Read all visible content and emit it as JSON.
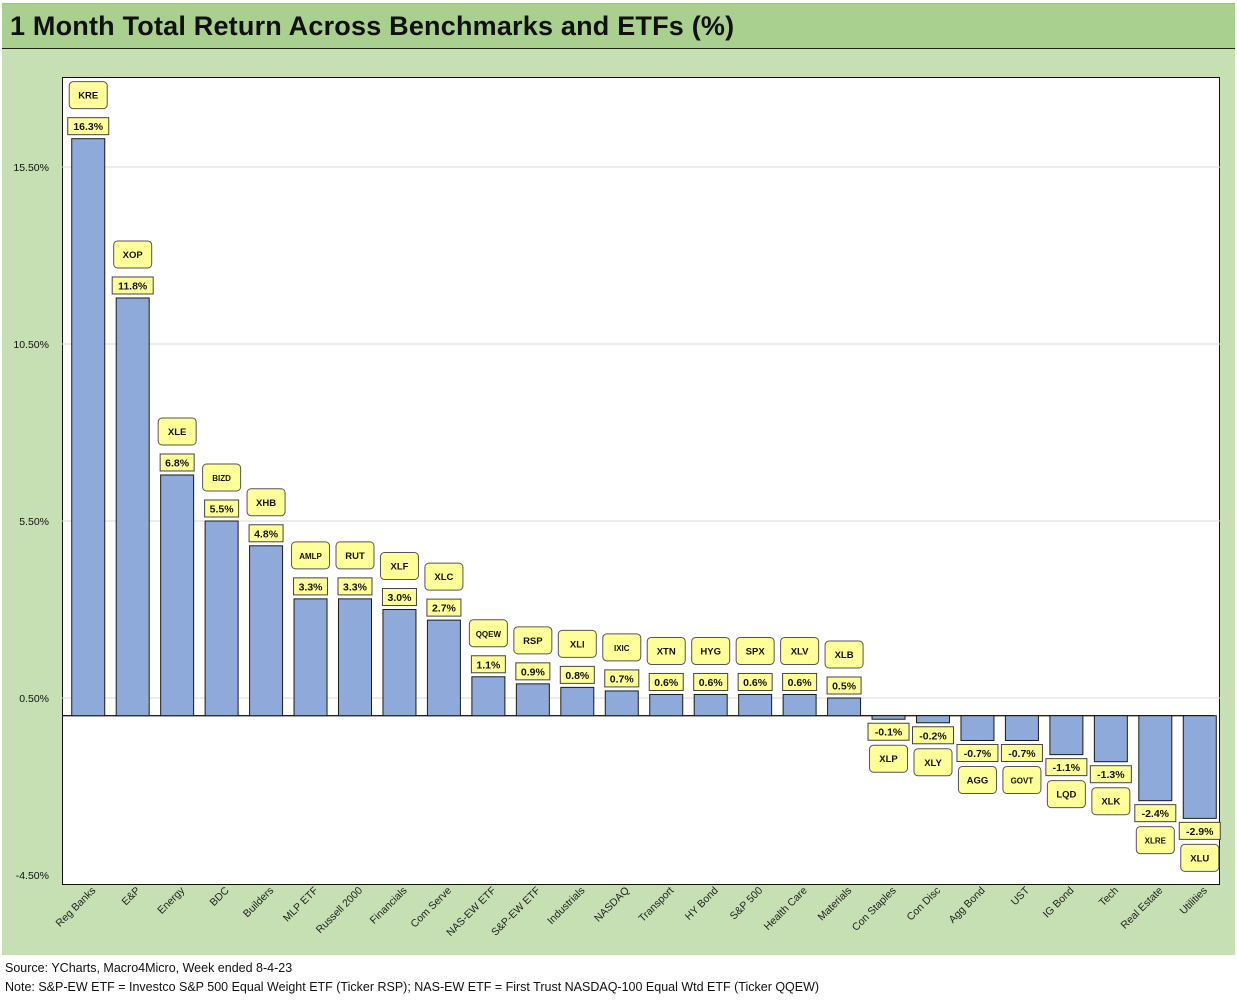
{
  "title": "1 Month Total Return Across Benchmarks and ETFs (%)",
  "footer": {
    "source": "Source: YCharts, Macro4Micro, Week ended 8-4-23",
    "note": "Note: S&P-EW ETF = Investco S&P 500 Equal Weight ETF (Ticker RSP); NAS-EW ETF = First Trust NASDAQ-100 Equal Wtd ETF (Ticker QQEW)"
  },
  "colors": {
    "bar": "#8eaadb",
    "label_fill": "#ffff99",
    "panel": "#c6e0b4",
    "title_bar": "#a9d08e"
  },
  "chart_data": {
    "type": "bar",
    "title": "1 Month Total Return Across Benchmarks and ETFs (%)",
    "ylim": [
      -4.5,
      18.0
    ],
    "y_ticks": [
      -4.5,
      0.5,
      5.5,
      10.5,
      15.5
    ],
    "y_tick_labels": [
      "-4.50%",
      "0.50%",
      "5.50%",
      "10.50%",
      "15.50%"
    ],
    "grid": true,
    "categories": [
      "Reg Banks",
      "E&P",
      "Energy",
      "BDC",
      "Builders",
      "MLP ETF",
      "Russell 2000",
      "Financials",
      "Com Serve",
      "NAS-EW ETF",
      "S&P-EW ETF",
      "Industrials",
      "NASDAQ",
      "Transport",
      "HY Bond",
      "S&P 500",
      "Health Care",
      "Materials",
      "Con Staples",
      "Con Disc",
      "Agg Bond",
      "UST",
      "IG Bond",
      "Tech",
      "Real Estate",
      "Utilities"
    ],
    "tickers": [
      "KRE",
      "XOP",
      "XLE",
      "BIZD",
      "XHB",
      "AMLP",
      "RUT",
      "XLF",
      "XLC",
      "QQEW",
      "RSP",
      "XLI",
      "IXIC",
      "XTN",
      "HYG",
      "SPX",
      "XLV",
      "XLB",
      "XLP",
      "XLY",
      "AGG",
      "GOVT",
      "LQD",
      "XLK",
      "XLRE",
      "XLU"
    ],
    "values": [
      16.3,
      11.8,
      6.8,
      5.5,
      4.8,
      3.3,
      3.3,
      3.0,
      2.7,
      1.1,
      0.9,
      0.8,
      0.7,
      0.6,
      0.6,
      0.6,
      0.6,
      0.5,
      -0.1,
      -0.2,
      -0.7,
      -0.7,
      -1.1,
      -1.3,
      -2.4,
      -2.9
    ],
    "value_labels": [
      "16.3%",
      "11.8%",
      "6.8%",
      "5.5%",
      "4.8%",
      "3.3%",
      "3.3%",
      "3.0%",
      "2.7%",
      "1.1%",
      "0.9%",
      "0.8%",
      "0.7%",
      "0.6%",
      "0.6%",
      "0.6%",
      "0.6%",
      "0.5%",
      "-0.1%",
      "-0.2%",
      "-0.7%",
      "-0.7%",
      "-1.1%",
      "-1.3%",
      "-2.4%",
      "-2.9%"
    ]
  }
}
